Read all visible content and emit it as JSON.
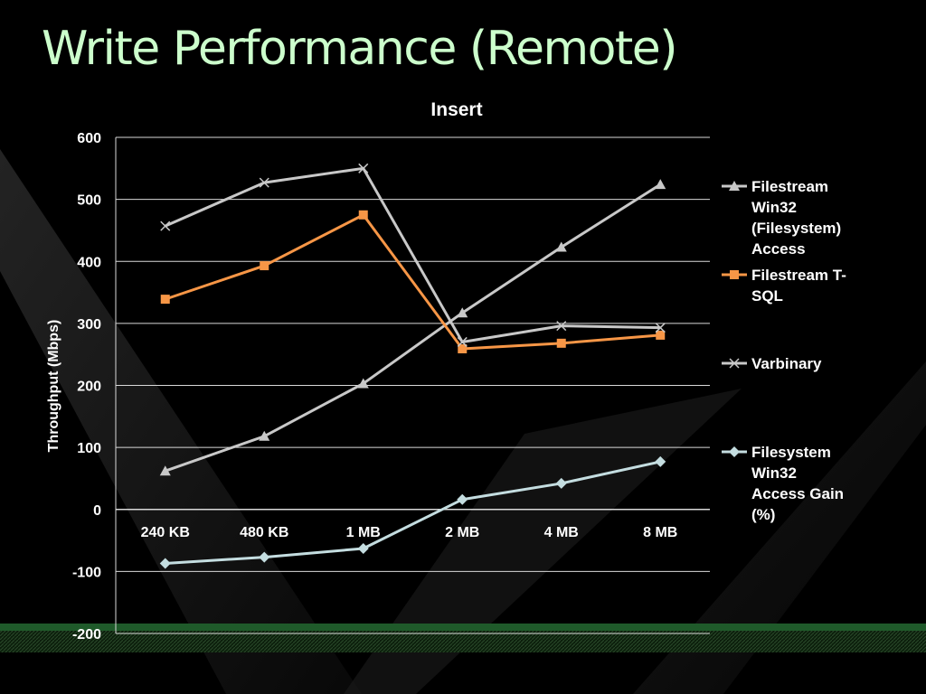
{
  "slide": {
    "title": "Write Performance (Remote)"
  },
  "chart_data": {
    "type": "line",
    "title": "Insert",
    "xlabel": "",
    "ylabel": "Throughput (Mbps)",
    "ylim": [
      -200,
      600
    ],
    "yticks": [
      600,
      500,
      400,
      300,
      200,
      100,
      0,
      -100,
      -200
    ],
    "grid": true,
    "legend_position": "right",
    "categories": [
      "240 KB",
      "480 KB",
      "1 MB",
      "2 MB",
      "4 MB",
      "8 MB"
    ],
    "series": [
      {
        "name": "Filestream Win32 (Filesystem) Access",
        "legend_lines": [
          "Filestream",
          "Win32",
          "(Filesystem)",
          "Access"
        ],
        "marker": "triangle",
        "color": "#c8c8c8",
        "values": [
          62,
          118,
          203,
          317,
          423,
          524
        ]
      },
      {
        "name": "Filestream T-SQL",
        "legend_lines": [
          "Filestream T-",
          "SQL"
        ],
        "marker": "square",
        "color": "#f79646",
        "values": [
          339,
          393,
          475,
          259,
          268,
          281
        ]
      },
      {
        "name": "Varbinary",
        "legend_lines": [
          "Varbinary"
        ],
        "marker": "x",
        "color": "#c8c8c8",
        "values": [
          457,
          527,
          550,
          270,
          296,
          293
        ]
      },
      {
        "name": "Filesystem Win32 Access Gain (%)",
        "legend_lines": [
          "Filesystem",
          "Win32",
          "Access Gain",
          "(%)"
        ],
        "marker": "diamond",
        "color": "#c4dde0",
        "values": [
          -87,
          -77,
          -63,
          16,
          42,
          77
        ]
      }
    ]
  }
}
